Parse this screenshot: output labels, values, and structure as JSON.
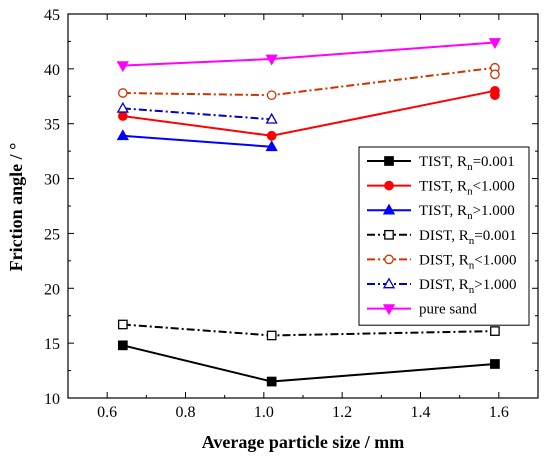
{
  "chart_data": {
    "type": "line",
    "xlabel": "Average particle size / mm",
    "ylabel": "Friction angle / °",
    "xlim": [
      0.5,
      1.7
    ],
    "ylim": [
      10,
      45
    ],
    "xticks": [
      0.6,
      0.8,
      1.0,
      1.2,
      1.4,
      1.6
    ],
    "yticks": [
      10,
      15,
      20,
      25,
      30,
      35,
      40,
      45
    ],
    "xtick_labels": [
      "0.6",
      "0.8",
      "1.0",
      "1.2",
      "1.4",
      "1.6"
    ],
    "ytick_labels": [
      "10",
      "15",
      "20",
      "25",
      "30",
      "35",
      "40",
      "45"
    ],
    "grid": false,
    "legend_position": "right",
    "series": [
      {
        "name": "TIST, Rn=0.001",
        "label_main": "TIST, R",
        "label_sub": "n",
        "label_rest": "=0.001",
        "color": "#000000",
        "dash": "solid",
        "marker": "square",
        "filled": true,
        "x": [
          0.64,
          1.02,
          1.59
        ],
        "y": [
          14.8,
          11.5,
          13.1
        ]
      },
      {
        "name": "TIST, Rn<1.000",
        "label_main": "TIST, R",
        "label_sub": "n",
        "label_rest": "<1.000",
        "color": "#ff0000",
        "dash": "solid",
        "marker": "circle",
        "filled": true,
        "x": [
          0.64,
          1.02,
          1.59,
          1.59
        ],
        "y": [
          35.7,
          33.9,
          38.0,
          37.6
        ]
      },
      {
        "name": "TIST, Rn>1.000",
        "label_main": "TIST, R",
        "label_sub": "n",
        "label_rest": ">1.000",
        "color": "#0000ff",
        "dash": "solid",
        "marker": "triangle",
        "filled": true,
        "x": [
          0.64,
          1.02
        ],
        "y": [
          33.9,
          32.9
        ]
      },
      {
        "name": "DIST, Rn=0.001",
        "label_main": "DIST, R",
        "label_sub": "n",
        "label_rest": "=0.001",
        "color": "#000000",
        "dash": "dashdot",
        "marker": "square",
        "filled": false,
        "x": [
          0.64,
          1.02,
          1.59
        ],
        "y": [
          16.7,
          15.7,
          16.1
        ]
      },
      {
        "name": "DIST, Rn<1.000",
        "label_main": "DIST, R",
        "label_sub": "n",
        "label_rest": "<1.000",
        "color": "#cc3300",
        "dash": "dashdot",
        "marker": "circle",
        "filled": false,
        "x": [
          0.64,
          1.02,
          1.59,
          1.59
        ],
        "y": [
          37.8,
          37.6,
          40.1,
          39.5
        ]
      },
      {
        "name": "DIST, Rn>1.000",
        "label_main": "DIST, R",
        "label_sub": "n",
        "label_rest": ">1.000",
        "color": "#0000cc",
        "dash": "dashdot",
        "marker": "triangle",
        "filled": false,
        "x": [
          0.64,
          1.02
        ],
        "y": [
          36.4,
          35.4
        ]
      },
      {
        "name": "pure sand",
        "label_main": "pure sand",
        "label_sub": "",
        "label_rest": "",
        "color": "#ff00ff",
        "dash": "solid",
        "marker": "triangle-down",
        "filled": true,
        "x": [
          0.64,
          1.02,
          1.59
        ],
        "y": [
          40.3,
          40.9,
          42.4
        ]
      }
    ]
  }
}
